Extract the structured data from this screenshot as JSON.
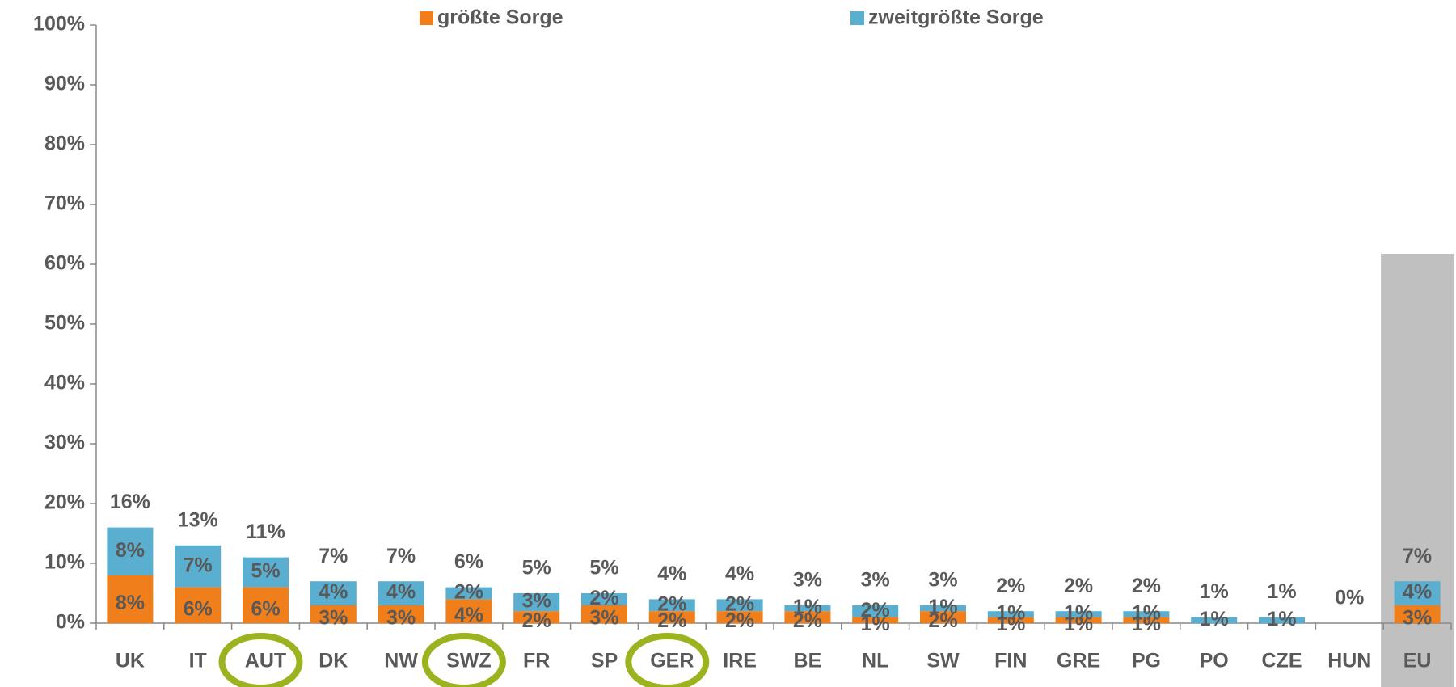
{
  "chart_data": {
    "type": "stacked_bar",
    "categories": [
      "UK",
      "IT",
      "AUT",
      "DK",
      "NW",
      "SWZ",
      "FR",
      "SP",
      "GER",
      "IRE",
      "BE",
      "NL",
      "SW",
      "FIN",
      "GRE",
      "PG",
      "PO",
      "CZE",
      "HUN",
      "EU"
    ],
    "series": [
      {
        "name": "größte Sorge",
        "color": "#f07e1a",
        "values": [
          8,
          6,
          6,
          3,
          3,
          4,
          2,
          3,
          2,
          2,
          2,
          1,
          2,
          1,
          1,
          1,
          0,
          0,
          0,
          3
        ],
        "value_labels": [
          "8%",
          "6%",
          "6%",
          "3%",
          "3%",
          "4%",
          "2%",
          "3%",
          "2%",
          "2%",
          "2%",
          "1%",
          "2%",
          "1%",
          "1%",
          "1%",
          null,
          null,
          null,
          "3%"
        ]
      },
      {
        "name": "zweitgrößte Sorge",
        "color": "#5aafd0",
        "values": [
          8,
          7,
          5,
          4,
          4,
          2,
          3,
          2,
          2,
          2,
          1,
          2,
          1,
          1,
          1,
          1,
          1,
          1,
          0,
          4
        ],
        "value_labels": [
          "8%",
          "7%",
          "5%",
          "4%",
          "4%",
          "2%",
          "3%",
          "2%",
          "2%",
          "2%",
          "1%",
          "2%",
          "1%",
          "1%",
          "1%",
          "1%",
          "1%",
          "1%",
          null,
          "4%"
        ]
      }
    ],
    "total_labels": [
      "16%",
      "13%",
      "11%",
      "7%",
      "7%",
      "6%",
      "5%",
      "5%",
      "4%",
      "4%",
      "3%",
      "3%",
      "3%",
      "2%",
      "2%",
      "2%",
      "1%",
      "1%",
      "0%",
      "7%"
    ],
    "ylim": [
      0,
      100
    ],
    "yticks": [
      {
        "value": 0,
        "label": "0%"
      },
      {
        "value": 10,
        "label": "10%"
      },
      {
        "value": 20,
        "label": "20%"
      },
      {
        "value": 30,
        "label": "30%"
      },
      {
        "value": 40,
        "label": "40%"
      },
      {
        "value": 50,
        "label": "50%"
      },
      {
        "value": 60,
        "label": "60%"
      },
      {
        "value": 70,
        "label": "70%"
      },
      {
        "value": 80,
        "label": "80%"
      },
      {
        "value": 90,
        "label": "90%"
      },
      {
        "value": 100,
        "label": "100%"
      }
    ],
    "circled": [
      "AUT",
      "SWZ",
      "GER"
    ],
    "circle_color": "#9cb31f",
    "shaded": "EU",
    "shade_color": "#c0c0c0"
  }
}
